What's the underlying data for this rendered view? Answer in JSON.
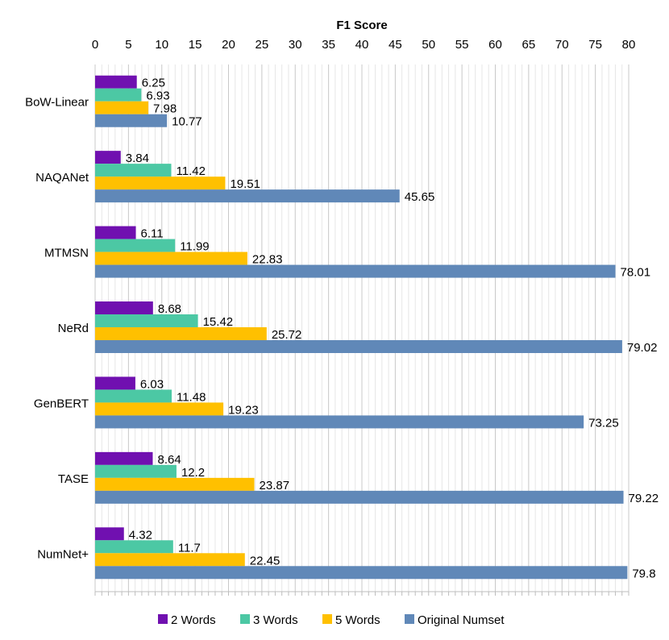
{
  "chart_data": {
    "type": "bar",
    "orientation": "horizontal",
    "title": "F1 Score",
    "categories": [
      "BoW-Linear",
      "NAQANet",
      "MTMSN",
      "NeRd",
      "GenBERT",
      "TASE",
      "NumNet+"
    ],
    "series": [
      {
        "name": "2 Words",
        "color": "#7010b0",
        "values": [
          6.25,
          3.84,
          6.11,
          8.68,
          6.03,
          8.64,
          4.32
        ]
      },
      {
        "name": "3 Words",
        "color": "#4cc8a4",
        "values": [
          6.93,
          11.42,
          11.99,
          15.42,
          11.48,
          12.2,
          11.7
        ]
      },
      {
        "name": "5 Words",
        "color": "#ffc000",
        "values": [
          7.98,
          19.51,
          22.83,
          25.72,
          19.23,
          23.87,
          22.45
        ]
      },
      {
        "name": "Original Numset",
        "color": "#6088b8",
        "values": [
          10.77,
          45.65,
          78.01,
          79.02,
          73.25,
          79.22,
          79.8
        ]
      }
    ],
    "value_labels": [
      [
        "6.25",
        "3.84",
        "6.11",
        "8.68",
        "6.03",
        "8.64",
        "4.32"
      ],
      [
        "6.93",
        "11.42",
        "11.99",
        "15.42",
        "11.48",
        "12.2",
        "11.7"
      ],
      [
        "7.98",
        "19.51",
        "22.83",
        "25.72",
        "19.23",
        "23.87",
        "22.45"
      ],
      [
        "10.77",
        "45.65",
        "78.01",
        "79.02",
        "73.25",
        "79.22",
        "79.8"
      ]
    ],
    "xlim": [
      0,
      80
    ],
    "xticks": [
      0,
      5,
      10,
      15,
      20,
      25,
      30,
      35,
      40,
      45,
      50,
      55,
      60,
      65,
      70,
      75,
      80
    ],
    "x_axis_position": "top",
    "grid": "vertical major and minor",
    "legend_position": "bottom"
  }
}
